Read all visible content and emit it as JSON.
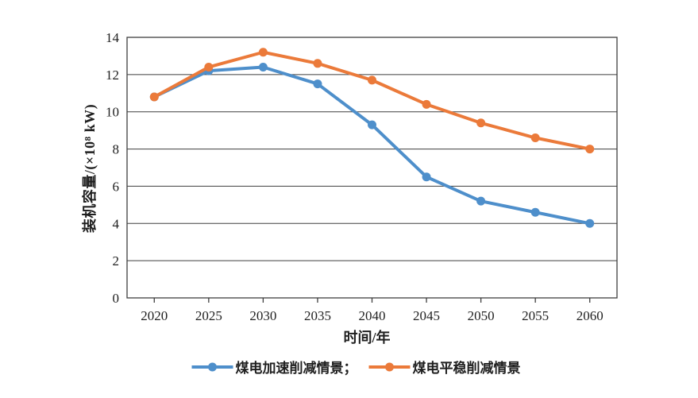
{
  "chart_data": {
    "type": "line",
    "xlabel": "时间/年",
    "ylabel": "装机容量/(×10⁸ kW)",
    "categories": [
      "2020",
      "2025",
      "2030",
      "2035",
      "2040",
      "2045",
      "2050",
      "2055",
      "2060"
    ],
    "series": [
      {
        "name": "煤电加速削减情景",
        "color": "#4E8FCB",
        "values": [
          10.8,
          12.2,
          12.4,
          11.5,
          9.3,
          6.5,
          5.2,
          4.6,
          4.0
        ]
      },
      {
        "name": "煤电平稳削减情景",
        "color": "#EB7A3A",
        "values": [
          10.8,
          12.4,
          13.2,
          12.6,
          11.7,
          10.4,
          9.4,
          8.6,
          8.0
        ]
      }
    ],
    "legend_labels": [
      "煤电加速削减情景；",
      "煤电平稳削减情景"
    ],
    "ylim": [
      0,
      14
    ],
    "y_tick_step": 2,
    "grid": "horizontal",
    "legend_position": "bottom",
    "axis_color": "#3f3f3f",
    "text_color": "#1f1f1f"
  }
}
